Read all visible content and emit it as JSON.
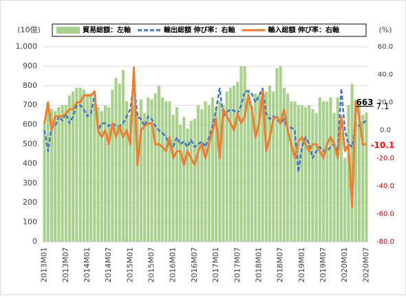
{
  "chart_data": {
    "type": "combo",
    "y_unit": "(10億)",
    "y2_unit": "(%)",
    "categories": [
      "2013M01",
      null,
      null,
      null,
      null,
      null,
      "2013M07",
      null,
      null,
      null,
      null,
      null,
      "2014M01",
      null,
      null,
      null,
      null,
      null,
      "2014M07",
      null,
      null,
      null,
      null,
      null,
      "2015M01",
      null,
      null,
      null,
      null,
      null,
      "2015M07",
      null,
      null,
      null,
      null,
      null,
      "2016M01",
      null,
      null,
      null,
      null,
      null,
      "2016M07",
      null,
      null,
      null,
      null,
      null,
      "2017M01",
      null,
      null,
      null,
      null,
      null,
      "2017M07",
      null,
      null,
      null,
      null,
      null,
      "2018M01",
      null,
      null,
      null,
      null,
      null,
      "2018M07",
      null,
      null,
      null,
      null,
      null,
      "2019M01",
      null,
      null,
      null,
      null,
      null,
      "2019M07",
      null,
      null,
      null,
      null,
      null,
      "2020M01",
      null,
      null,
      null,
      null,
      null,
      "2020M07"
    ],
    "series": [
      {
        "name": "貿易総額：左軸",
        "type": "bar",
        "color": "#a9d18e",
        "values": [
          610,
          680,
          680,
          670,
          690,
          700,
          700,
          750,
          770,
          790,
          790,
          780,
          760,
          760,
          710,
          690,
          670,
          700,
          690,
          780,
          840,
          810,
          880,
          720,
          650,
          700,
          660,
          730,
          660,
          740,
          730,
          760,
          800,
          740,
          720,
          720,
          650,
          690,
          600,
          640,
          580,
          620,
          630,
          700,
          680,
          720,
          700,
          740,
          690,
          720,
          700,
          770,
          790,
          800,
          820,
          900,
          900,
          780,
          700,
          760,
          750,
          780,
          770,
          800,
          770,
          890,
          900,
          790,
          760,
          720,
          720,
          700,
          700,
          690,
          700,
          680,
          660,
          740,
          720,
          720,
          740,
          660,
          740,
          560,
          430,
          700,
          810,
          730,
          700,
          650,
          663
        ]
      },
      {
        "name": "輸出総額 伸び率：右軸",
        "type": "line",
        "axis": "y2",
        "dash": true,
        "color": "#4472c4",
        "values": [
          0,
          -15,
          2,
          3,
          10,
          7,
          12,
          5,
          10,
          18,
          18,
          15,
          10,
          12,
          25,
          0,
          5,
          5,
          3,
          5,
          3,
          3,
          5,
          10,
          15,
          35,
          10,
          8,
          3,
          10,
          8,
          3,
          0,
          -2,
          -5,
          -10,
          -12,
          -5,
          -10,
          -8,
          -12,
          -7,
          -12,
          -10,
          -8,
          -12,
          -5,
          3,
          15,
          30,
          10,
          13,
          15,
          14,
          12,
          18,
          28,
          28,
          26,
          20,
          25,
          30,
          12,
          8,
          10,
          8,
          5,
          8,
          0,
          2,
          0,
          -30,
          -12,
          -5,
          -10,
          -20,
          -15,
          -12,
          -15,
          -15,
          -12,
          -10,
          -15,
          30,
          0,
          -10,
          -12,
          5,
          3,
          5,
          7.1
        ]
      },
      {
        "name": "輸入総額 伸び率：右軸",
        "type": "line",
        "axis": "y2",
        "dash": false,
        "color": "#ed7d31",
        "values": [
          5,
          20,
          0,
          10,
          10,
          10,
          12,
          15,
          15,
          20,
          20,
          25,
          25,
          25,
          28,
          0,
          -5,
          0,
          -10,
          5,
          -5,
          3,
          -5,
          0,
          -10,
          45,
          -25,
          0,
          3,
          5,
          5,
          -10,
          -10,
          -12,
          -15,
          -5,
          -20,
          -15,
          -15,
          -25,
          -15,
          -20,
          -25,
          -15,
          -10,
          -20,
          -10,
          0,
          8,
          -20,
          15,
          10,
          5,
          0,
          12,
          5,
          10,
          25,
          15,
          -5,
          5,
          28,
          -15,
          -5,
          8,
          10,
          5,
          15,
          0,
          -10,
          -20,
          -8,
          -5,
          -10,
          -15,
          -10,
          -10,
          -15,
          -20,
          -10,
          -5,
          -10,
          -20,
          10,
          -15,
          -10,
          -55,
          20,
          10,
          -10,
          -10.1
        ]
      }
    ],
    "ylim": [
      0,
      1000
    ],
    "yticks": [
      0,
      100,
      200,
      300,
      400,
      500,
      600,
      700,
      800,
      900,
      {
        "value": 1000,
        "label": "1,000"
      }
    ],
    "y2lim": [
      -80,
      60
    ],
    "y2ticks": [
      {
        "value": -80,
        "label": "-80.0"
      },
      {
        "value": -60,
        "label": "-60.0"
      },
      {
        "value": -40,
        "label": "-40.0"
      },
      {
        "value": -20,
        "label": "-20.0"
      },
      {
        "value": 0,
        "label": "0.0"
      },
      {
        "value": 20,
        "label": "20.0"
      },
      {
        "value": 40,
        "label": "40.0"
      },
      {
        "value": 60,
        "label": "60.0"
      }
    ],
    "grid": true,
    "legend": "top"
  }
}
